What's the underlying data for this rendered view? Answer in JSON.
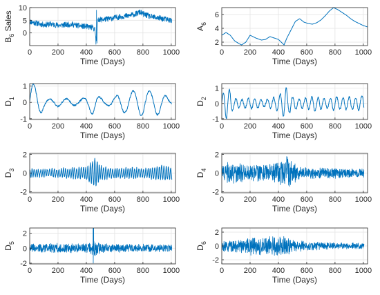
{
  "chart_data": [
    {
      "type": "line",
      "panel": "sales",
      "ylabel": "B",
      "ylabel_sub": "6",
      "ylabel_suffix": " Sales",
      "xlabel": "Time (Days)",
      "xlim": [
        0,
        1030
      ],
      "ylim": [
        -5,
        10
      ],
      "yticks": [
        0,
        5,
        10
      ],
      "xticks": [
        0,
        200,
        400,
        600,
        800,
        1000
      ],
      "grid": true,
      "color": "#0072BD",
      "trend_x": [
        0,
        50,
        100,
        150,
        200,
        250,
        300,
        350,
        400,
        440,
        460,
        470,
        480,
        490,
        500,
        550,
        600,
        650,
        700,
        750,
        780,
        800,
        850,
        900,
        950,
        1000,
        1030
      ],
      "trend_y": [
        4.5,
        3.8,
        3.2,
        3.5,
        3.0,
        3.2,
        3.4,
        2.8,
        2.5,
        2.2,
        1.5,
        -3,
        4.5,
        5.5,
        5.2,
        5.5,
        6.0,
        6.5,
        6.8,
        7.5,
        8.2,
        7.5,
        6.5,
        6.0,
        5.5,
        5.0,
        4.8
      ],
      "noise_amp": 1.1,
      "noise_seed": 11,
      "spikes": [
        [
          468,
          -4.5
        ],
        [
          472,
          9.0
        ],
        [
          475,
          -4.0
        ]
      ]
    },
    {
      "type": "line",
      "panel": "A6",
      "ylabel": "A",
      "ylabel_sub": "6",
      "ylabel_suffix": "",
      "xlabel": "Time (Days)",
      "xlim": [
        0,
        1030
      ],
      "ylim": [
        1.5,
        7
      ],
      "yticks": [
        2,
        4,
        6
      ],
      "xticks": [
        0,
        200,
        400,
        600,
        800,
        1000
      ],
      "grid": true,
      "color": "#0072BD",
      "x": [
        0,
        30,
        60,
        90,
        120,
        140,
        170,
        200,
        240,
        280,
        310,
        340,
        370,
        400,
        420,
        440,
        460,
        490,
        520,
        550,
        580,
        610,
        640,
        670,
        700,
        730,
        760,
        790,
        820,
        850,
        880,
        910,
        940,
        970,
        1000,
        1030
      ],
      "y": [
        3.0,
        3.4,
        3.0,
        2.2,
        1.8,
        1.6,
        2.0,
        3.0,
        2.6,
        2.3,
        2.4,
        2.8,
        2.6,
        2.4,
        2.0,
        1.6,
        2.6,
        3.8,
        5.0,
        5.4,
        4.9,
        4.7,
        4.6,
        4.8,
        5.2,
        5.8,
        6.5,
        7.0,
        6.7,
        6.3,
        5.9,
        5.4,
        5.0,
        4.7,
        4.4,
        4.2
      ]
    },
    {
      "type": "line",
      "panel": "D1",
      "ylabel": "D",
      "ylabel_sub": "1",
      "ylabel_suffix": "",
      "xlabel": "Time (Days)",
      "xlim": [
        0,
        1030
      ],
      "ylim": [
        -1.05,
        1.15
      ],
      "yticks": [
        -1,
        0,
        1
      ],
      "xticks": [
        0,
        200,
        400,
        600,
        800,
        1000
      ],
      "grid": true,
      "color": "#0072BD",
      "kind": "smooth",
      "period": 120,
      "amp": 0.55,
      "noise_amp": 0.05,
      "noise_seed": 21,
      "env_x": [
        0,
        20,
        50,
        80,
        110,
        150,
        200,
        250,
        300,
        350,
        400,
        450,
        500,
        550,
        600,
        650,
        700,
        750,
        800,
        850,
        900,
        950,
        1000,
        1030
      ],
      "env_y": [
        1.6,
        2.1,
        1.9,
        1.2,
        0.4,
        0.35,
        0.45,
        0.4,
        0.35,
        0.3,
        0.6,
        1.4,
        0.5,
        0.3,
        0.6,
        1.1,
        1.2,
        1.3,
        1.5,
        1.2,
        1.4,
        0.9,
        0.2,
        0.15
      ]
    },
    {
      "type": "line",
      "panel": "D2",
      "ylabel": "D",
      "ylabel_sub": "2",
      "ylabel_suffix": "",
      "xlabel": "Time (Days)",
      "xlim": [
        0,
        1030
      ],
      "ylim": [
        -1.05,
        1.3
      ],
      "yticks": [
        -1,
        0,
        1
      ],
      "xticks": [
        0,
        200,
        400,
        600,
        800,
        1000
      ],
      "grid": true,
      "color": "#0072BD",
      "kind": "smooth",
      "period": 45,
      "amp": 0.35,
      "noise_amp": 0.06,
      "noise_seed": 32,
      "env_x": [
        0,
        20,
        40,
        60,
        80,
        100,
        150,
        200,
        250,
        300,
        350,
        400,
        430,
        450,
        470,
        500,
        550,
        600,
        650,
        700,
        750,
        800,
        850,
        900,
        950,
        1000,
        1030
      ],
      "env_y": [
        0.8,
        3.0,
        2.8,
        2.5,
        1.0,
        0.9,
        0.7,
        1.0,
        0.9,
        0.6,
        0.9,
        1.5,
        2.2,
        3.3,
        2.0,
        1.2,
        0.8,
        1.0,
        1.4,
        1.1,
        0.9,
        1.3,
        1.0,
        1.2,
        1.1,
        1.6,
        1.0
      ]
    },
    {
      "type": "line",
      "panel": "D3",
      "ylabel": "D",
      "ylabel_sub": "3",
      "ylabel_suffix": "",
      "xlabel": "Time (Days)",
      "xlim": [
        0,
        1030
      ],
      "ylim": [
        -2.1,
        2.1
      ],
      "yticks": [
        -2,
        0,
        2
      ],
      "xticks": [
        0,
        200,
        400,
        600,
        800,
        1000
      ],
      "grid": true,
      "color": "#0072BD",
      "kind": "smooth",
      "period": 16,
      "amp": 0.4,
      "noise_amp": 0.12,
      "noise_seed": 43,
      "env_x": [
        0,
        100,
        200,
        300,
        400,
        440,
        460,
        480,
        500,
        550,
        600,
        700,
        800,
        900,
        950,
        1000,
        1030
      ],
      "env_y": [
        1.0,
        0.9,
        1.1,
        1.3,
        1.6,
        3.0,
        3.8,
        3.0,
        1.8,
        1.4,
        1.2,
        1.4,
        1.2,
        1.6,
        2.0,
        1.5,
        1.2
      ]
    },
    {
      "type": "line",
      "panel": "D4",
      "ylabel": "D",
      "ylabel_sub": "4",
      "ylabel_suffix": "",
      "xlabel": "Time (Days)",
      "xlim": [
        0,
        1030
      ],
      "ylim": [
        -2.1,
        2.1
      ],
      "yticks": [
        -2,
        0,
        2
      ],
      "xticks": [
        0,
        200,
        400,
        600,
        800,
        1000
      ],
      "grid": true,
      "color": "#0072BD",
      "kind": "noise",
      "noise_amp": 0.5,
      "noise_seed": 54,
      "env_x": [
        0,
        60,
        120,
        200,
        300,
        400,
        440,
        470,
        500,
        550,
        600,
        700,
        800,
        900,
        1000,
        1030
      ],
      "env_y": [
        1.3,
        2.2,
        1.8,
        1.6,
        1.5,
        1.8,
        2.8,
        3.2,
        2.0,
        1.2,
        1.0,
        0.9,
        1.0,
        0.9,
        0.8,
        0.7
      ]
    },
    {
      "type": "line",
      "panel": "D5",
      "ylabel": "D",
      "ylabel_sub": "5",
      "ylabel_suffix": "",
      "xlabel": "Time (Days)",
      "xlim": [
        0,
        1030
      ],
      "ylim": [
        -2.1,
        2.7
      ],
      "yticks": [
        -2,
        0,
        2
      ],
      "xticks": [
        0,
        200,
        400,
        600,
        800,
        1000
      ],
      "grid": true,
      "color": "#0072BD",
      "kind": "noise",
      "noise_amp": 0.45,
      "noise_seed": 65,
      "env_x": [
        0,
        100,
        200,
        300,
        400,
        440,
        460,
        500,
        600,
        700,
        800,
        900,
        1000,
        1030
      ],
      "env_y": [
        1.0,
        1.1,
        1.2,
        1.1,
        1.2,
        1.8,
        2.0,
        1.3,
        1.0,
        1.0,
        1.0,
        1.0,
        1.0,
        0.9
      ],
      "spikes": [
        [
          448,
          2.9
        ],
        [
          449,
          -2.0
        ],
        [
          452,
          2.7
        ]
      ]
    },
    {
      "type": "line",
      "panel": "D6",
      "ylabel": "D",
      "ylabel_sub": "6",
      "ylabel_suffix": "",
      "xlabel": "Time (Days)",
      "xlim": [
        0,
        1030
      ],
      "ylim": [
        -2.6,
        2.6
      ],
      "yticks": [
        -2,
        0,
        2
      ],
      "xticks": [
        0,
        200,
        400,
        600,
        800,
        1000
      ],
      "grid": true,
      "color": "#0072BD",
      "kind": "noise",
      "noise_amp": 0.55,
      "noise_seed": 76,
      "env_x": [
        0,
        100,
        200,
        300,
        400,
        450,
        500,
        600,
        700,
        800,
        900,
        1000,
        1030
      ],
      "env_y": [
        1.1,
        1.4,
        2.1,
        1.9,
        2.2,
        2.4,
        1.5,
        1.0,
        0.8,
        0.7,
        0.7,
        0.7,
        0.7
      ]
    }
  ]
}
